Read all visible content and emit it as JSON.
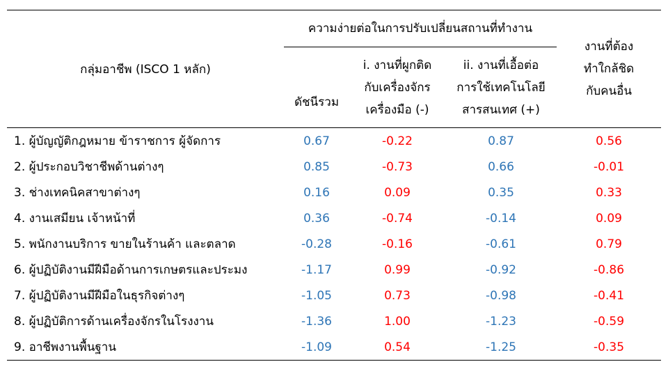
{
  "header": {
    "occupation": "กลุ่มอาชีพ (ISCO 1 หลัก)",
    "group": "ความง่ายต่อในการปรับเปลี่ยนสถานที่ทำงาน",
    "columns": [
      {
        "lines": [
          "ดัชนีรวม"
        ],
        "color": "#2e75b6"
      },
      {
        "lines": [
          "i. งานที่ผูกติด",
          "กับเครื่องจักร",
          "เครื่องมือ (-)"
        ],
        "color": "#ff0000"
      },
      {
        "lines": [
          "ii. งานที่เอื้อต่อ",
          "การใช้เทคโนโลยี",
          "สารสนเทศ (+)"
        ],
        "color": "#2e75b6"
      },
      {
        "lines": [
          "งานที่ต้อง",
          "ทำใกล้ชิด",
          "กับคนอื่น"
        ],
        "color": "#ff0000"
      }
    ]
  },
  "rows": [
    {
      "label": "1. ผู้บัญญัติกฎหมาย ข้าราชการ ผู้จัดการ",
      "values": [
        "0.67",
        "-0.22",
        "0.87",
        "0.56"
      ]
    },
    {
      "label": "2. ผู้ประกอบวิชาชีพด้านต่างๆ",
      "values": [
        "0.85",
        "-0.73",
        "0.66",
        "-0.01"
      ]
    },
    {
      "label": "3. ช่างเทคนิคสาขาต่างๆ",
      "values": [
        "0.16",
        "0.09",
        "0.35",
        "0.33"
      ]
    },
    {
      "label": "4. งานเสมียน เจ้าหน้าที่",
      "values": [
        "0.36",
        "-0.74",
        "-0.14",
        "0.09"
      ]
    },
    {
      "label": "5. พนักงานบริการ ขายในร้านค้า และตลาด",
      "values": [
        "-0.28",
        "-0.16",
        "-0.61",
        "0.79"
      ]
    },
    {
      "label": "6. ผู้ปฏิบัติงานมีฝีมือด้านการเกษตรและประมง",
      "values": [
        "-1.17",
        "0.99",
        "-0.92",
        "-0.86"
      ]
    },
    {
      "label": "7. ผู้ปฏิบัติงานมีฝีมือในธุรกิจต่างๆ",
      "values": [
        "-1.05",
        "0.73",
        "-0.98",
        "-0.41"
      ]
    },
    {
      "label": "8. ผู้ปฏิบัติการด้านเครื่องจักรในโรงงาน",
      "values": [
        "-1.36",
        "1.00",
        "-1.23",
        "-0.59"
      ]
    },
    {
      "label": "9. อาชีพงานพื้นฐาน",
      "values": [
        "-1.09",
        "0.54",
        "-1.25",
        "-0.35"
      ]
    }
  ]
}
